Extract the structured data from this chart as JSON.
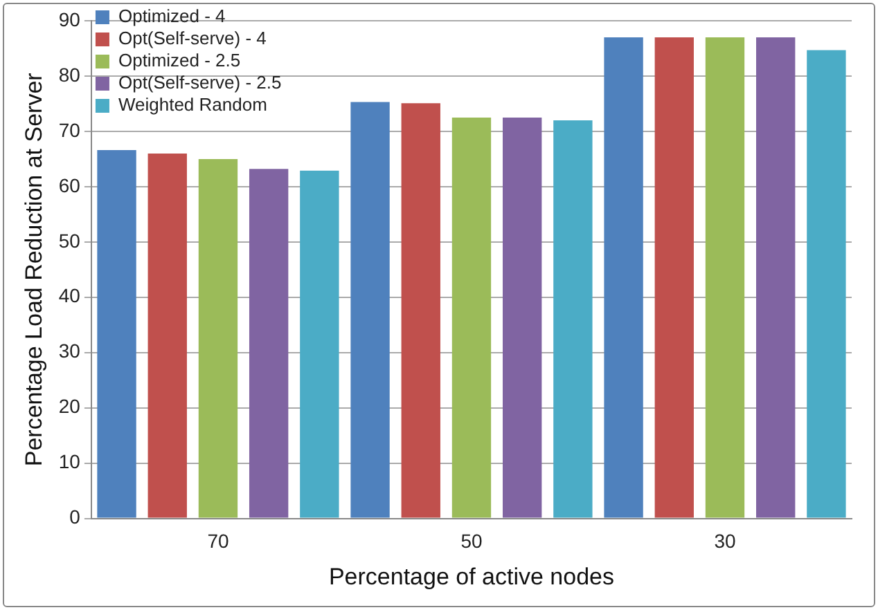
{
  "chart_data": {
    "type": "bar",
    "xlabel": "Percentage of active nodes",
    "ylabel": "Percentage Load Reduction at Server",
    "categories": [
      "70",
      "50",
      "30"
    ],
    "series": [
      {
        "name": "Optimized - 4",
        "color": "#4f81bd",
        "values": [
          66.6,
          75.3,
          87.0
        ]
      },
      {
        "name": "Opt(Self-serve) - 4",
        "color": "#c0504d",
        "values": [
          66.0,
          75.1,
          87.0
        ]
      },
      {
        "name": "Optimized - 2.5",
        "color": "#9bbb59",
        "values": [
          65.0,
          72.5,
          87.0
        ]
      },
      {
        "name": "Opt(Self-serve) - 2.5",
        "color": "#8064a2",
        "values": [
          63.2,
          72.5,
          87.0
        ]
      },
      {
        "name": "Weighted Random",
        "color": "#4bacc6",
        "values": [
          62.9,
          72.0,
          84.7
        ]
      }
    ],
    "ylim": [
      0,
      90
    ],
    "yticks": [
      0,
      10,
      20,
      30,
      40,
      50,
      60,
      70,
      80,
      90
    ],
    "grid": "y",
    "legend": "top left"
  }
}
